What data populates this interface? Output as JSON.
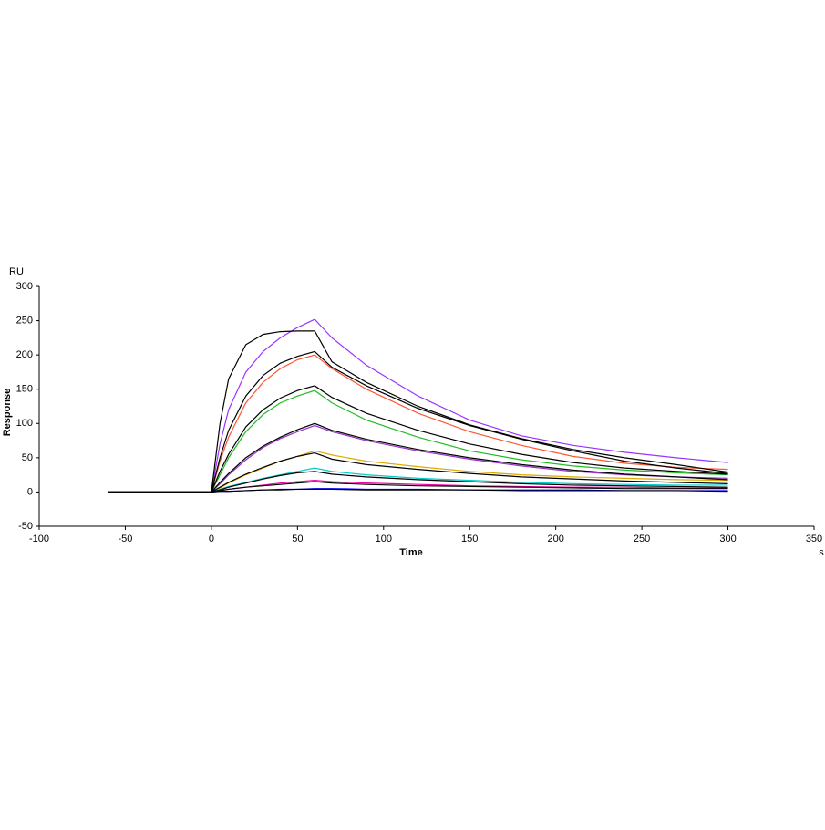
{
  "chart_data": {
    "type": "line",
    "y_unit": "RU",
    "y_label": "Response",
    "x_label": "Time",
    "x_unit": "s",
    "xlim": [
      -100,
      350
    ],
    "xticks": [
      -100,
      -50,
      0,
      50,
      100,
      150,
      200,
      250,
      300,
      350
    ],
    "ylim": [
      -50,
      300
    ],
    "yticks": [
      -50,
      0,
      50,
      100,
      150,
      200,
      250,
      300
    ],
    "x": [
      -60,
      0,
      5,
      10,
      20,
      30,
      40,
      50,
      60,
      70,
      90,
      120,
      150,
      180,
      210,
      240,
      270,
      300
    ],
    "series": [
      {
        "color": "#9933ff",
        "values": [
          0,
          0,
          70,
          120,
          175,
          205,
          225,
          240,
          252,
          225,
          185,
          140,
          105,
          82,
          68,
          58,
          50,
          43
        ]
      },
      {
        "color": "#ff5533",
        "values": [
          0,
          0,
          45,
          80,
          130,
          160,
          180,
          193,
          200,
          180,
          150,
          115,
          88,
          68,
          52,
          42,
          36,
          33
        ]
      },
      {
        "color": "#22bb22",
        "values": [
          0,
          0,
          25,
          50,
          88,
          113,
          130,
          140,
          148,
          130,
          105,
          80,
          60,
          47,
          38,
          32,
          28,
          25
        ]
      },
      {
        "color": "#9933cc",
        "values": [
          0,
          0,
          12,
          25,
          47,
          65,
          78,
          88,
          97,
          88,
          75,
          60,
          48,
          38,
          30,
          25,
          22,
          20
        ]
      },
      {
        "color": "#ddaa00",
        "values": [
          0,
          0,
          6,
          13,
          25,
          35,
          45,
          52,
          60,
          54,
          45,
          37,
          30,
          25,
          22,
          20,
          18,
          17
        ]
      },
      {
        "color": "#00cccc",
        "values": [
          0,
          0,
          4,
          8,
          14,
          20,
          25,
          30,
          35,
          30,
          25,
          20,
          17,
          14,
          12,
          11,
          10,
          10
        ]
      },
      {
        "color": "#ee00aa",
        "values": [
          0,
          0,
          2,
          4,
          7,
          10,
          13,
          15,
          17,
          15,
          13,
          11,
          9,
          8,
          7,
          7,
          6,
          6
        ]
      },
      {
        "color": "#0000ff",
        "values": [
          0,
          0,
          1,
          1,
          2,
          3,
          4,
          4,
          5,
          5,
          4,
          4,
          3,
          3,
          3,
          2,
          2,
          2
        ]
      },
      {
        "color": "#000000",
        "values": [
          0,
          0,
          100,
          165,
          215,
          230,
          234,
          235,
          235,
          190,
          160,
          125,
          98,
          78,
          62,
          50,
          40,
          29
        ]
      },
      {
        "color": "#000000",
        "values": [
          0,
          0,
          50,
          90,
          140,
          170,
          188,
          198,
          205,
          182,
          155,
          122,
          97,
          77,
          60,
          45,
          35,
          27
        ]
      },
      {
        "color": "#000000",
        "values": [
          0,
          0,
          30,
          55,
          95,
          120,
          137,
          148,
          155,
          138,
          115,
          90,
          70,
          55,
          43,
          35,
          30,
          26
        ]
      },
      {
        "color": "#000000",
        "values": [
          0,
          0,
          14,
          27,
          50,
          67,
          80,
          91,
          100,
          90,
          77,
          62,
          50,
          40,
          32,
          26,
          22,
          18
        ]
      },
      {
        "color": "#000000",
        "values": [
          0,
          0,
          7,
          14,
          26,
          36,
          45,
          52,
          57,
          48,
          40,
          33,
          27,
          22,
          19,
          16,
          14,
          12
        ]
      },
      {
        "color": "#000000",
        "values": [
          0,
          0,
          3,
          7,
          13,
          19,
          24,
          28,
          30,
          26,
          22,
          18,
          15,
          12,
          10,
          9,
          8,
          7
        ]
      },
      {
        "color": "#000000",
        "values": [
          0,
          0,
          2,
          4,
          7,
          9,
          11,
          13,
          15,
          13,
          11,
          9,
          8,
          7,
          6,
          5,
          5,
          5
        ]
      },
      {
        "color": "#000000",
        "values": [
          0,
          0,
          1,
          1,
          2,
          3,
          3,
          4,
          4,
          4,
          3,
          3,
          3,
          2,
          2,
          2,
          2,
          1
        ]
      }
    ]
  }
}
